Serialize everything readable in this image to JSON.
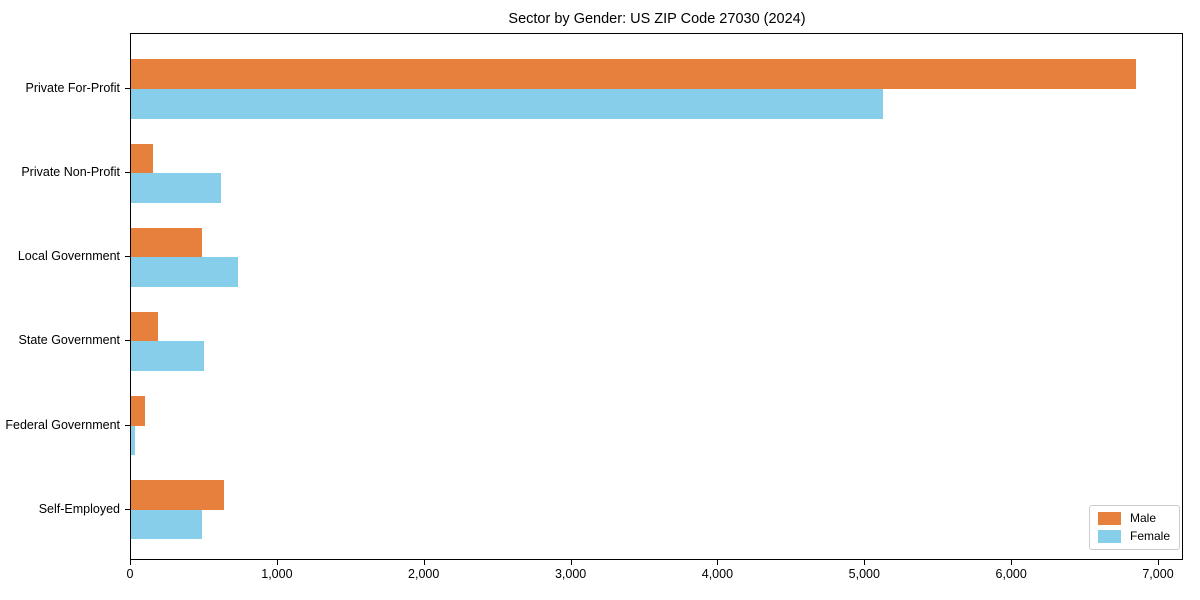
{
  "chart_data": {
    "type": "bar",
    "orientation": "horizontal",
    "title": "Sector by Gender: US ZIP Code 27030 (2024)",
    "xlabel": "",
    "ylabel": "",
    "grid": false,
    "legend_position": "lower right",
    "xlim": [
      0,
      7170
    ],
    "categories": [
      "Private For-Profit",
      "Private Non-Profit",
      "Local Government",
      "State Government",
      "Federal Government",
      "Self-Employed"
    ],
    "series": [
      {
        "name": "Male",
        "color": "#E8803D",
        "values": [
          6840,
          150,
          485,
          185,
          95,
          635
        ]
      },
      {
        "name": "Female",
        "color": "#87CEEB",
        "values": [
          5120,
          610,
          730,
          495,
          25,
          485
        ]
      }
    ],
    "xticks": [
      {
        "value": 0,
        "label": "0"
      },
      {
        "value": 1000,
        "label": "1,000"
      },
      {
        "value": 2000,
        "label": "2,000"
      },
      {
        "value": 3000,
        "label": "3,000"
      },
      {
        "value": 4000,
        "label": "4,000"
      },
      {
        "value": 5000,
        "label": "5,000"
      },
      {
        "value": 6000,
        "label": "6,000"
      },
      {
        "value": 7000,
        "label": "7,000"
      }
    ]
  }
}
